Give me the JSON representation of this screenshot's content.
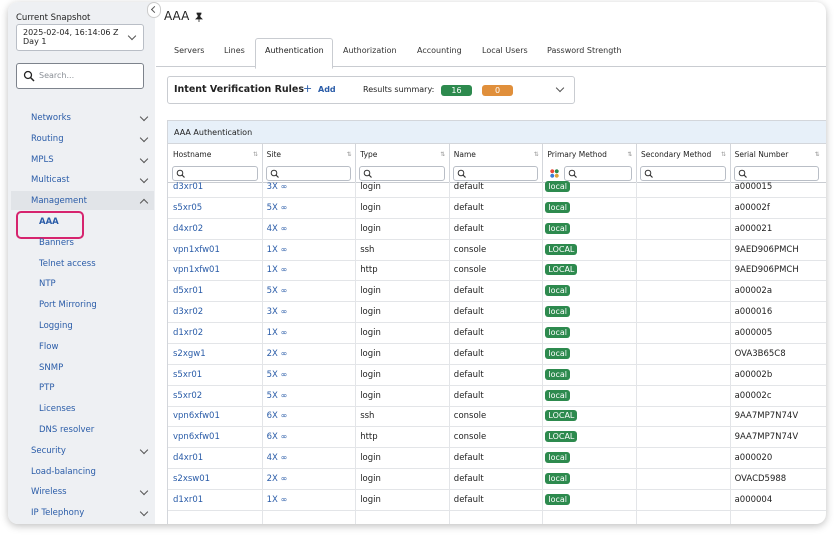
{
  "sidebar": {
    "snapshot_label": "Current Snapshot",
    "snapshot_value": "2025-02-04, 16:14:06 Z",
    "snapshot_day": "Day 1",
    "search_placeholder": "Search...",
    "menu": [
      "Networks",
      "Routing",
      "MPLS",
      "Multicast",
      "Management",
      "Security",
      "Load-balancing",
      "Wireless",
      "IP Telephony"
    ],
    "submenu": [
      "AAA",
      "Banners",
      "Telnet access",
      "NTP",
      "Port Mirroring",
      "Logging",
      "Flow",
      "SNMP",
      "PTP",
      "Licenses",
      "DNS resolver"
    ]
  },
  "header": {
    "title": "AAA"
  },
  "tabs": [
    "Servers",
    "Lines",
    "Authentication",
    "Authorization",
    "Accounting",
    "Local Users",
    "Password Strength"
  ],
  "intent": {
    "title": "Intent Verification Rules",
    "add": "Add",
    "summary_label": "Results summary:",
    "passed": 16,
    "failed": 0
  },
  "table": {
    "title": "AAA Authentication",
    "columns": [
      "Hostname",
      "Site",
      "Type",
      "Name",
      "Primary Method",
      "Secondary Method",
      "Serial Number"
    ],
    "rows": [
      [
        "d3xr01",
        "3X",
        "login",
        "default",
        "local",
        null,
        "a000015"
      ],
      [
        "s5xr05",
        "5X",
        "login",
        "default",
        "local",
        null,
        "a00002f"
      ],
      [
        "d4xr02",
        "4X",
        "login",
        "default",
        "local",
        null,
        "a000021"
      ],
      [
        "vpn1xfw01",
        "1X",
        "ssh",
        "console",
        "LOCAL",
        null,
        "9AED906PMCH"
      ],
      [
        "vpn1xfw01",
        "1X",
        "http",
        "console",
        "LOCAL",
        null,
        "9AED906PMCH"
      ],
      [
        "d5xr01",
        "5X",
        "login",
        "default",
        "local",
        null,
        "a00002a"
      ],
      [
        "d3xr02",
        "3X",
        "login",
        "default",
        "local",
        null,
        "a000016"
      ],
      [
        "d1xr02",
        "1X",
        "login",
        "default",
        "local",
        null,
        "a000005"
      ],
      [
        "s2xgw1",
        "2X",
        "login",
        "default",
        "local",
        null,
        "OVA3B65C8"
      ],
      [
        "s5xr01",
        "5X",
        "login",
        "default",
        "local",
        null,
        "a00002b"
      ],
      [
        "s5xr02",
        "5X",
        "login",
        "default",
        "local",
        null,
        "a00002c"
      ],
      [
        "vpn6xfw01",
        "6X",
        "ssh",
        "console",
        "LOCAL",
        null,
        "9AA7MP7N74V"
      ],
      [
        "vpn6xfw01",
        "6X",
        "http",
        "console",
        "LOCAL",
        null,
        "9AA7MP7N74V"
      ],
      [
        "d4xr01",
        "4X",
        "login",
        "default",
        "local",
        null,
        "a000020"
      ],
      [
        "s2xsw01",
        "2X",
        "login",
        "default",
        "local",
        null,
        "OVACD5988"
      ],
      [
        "d1xr01",
        "1X",
        "login",
        "default",
        "local",
        null,
        "a000004"
      ]
    ]
  }
}
